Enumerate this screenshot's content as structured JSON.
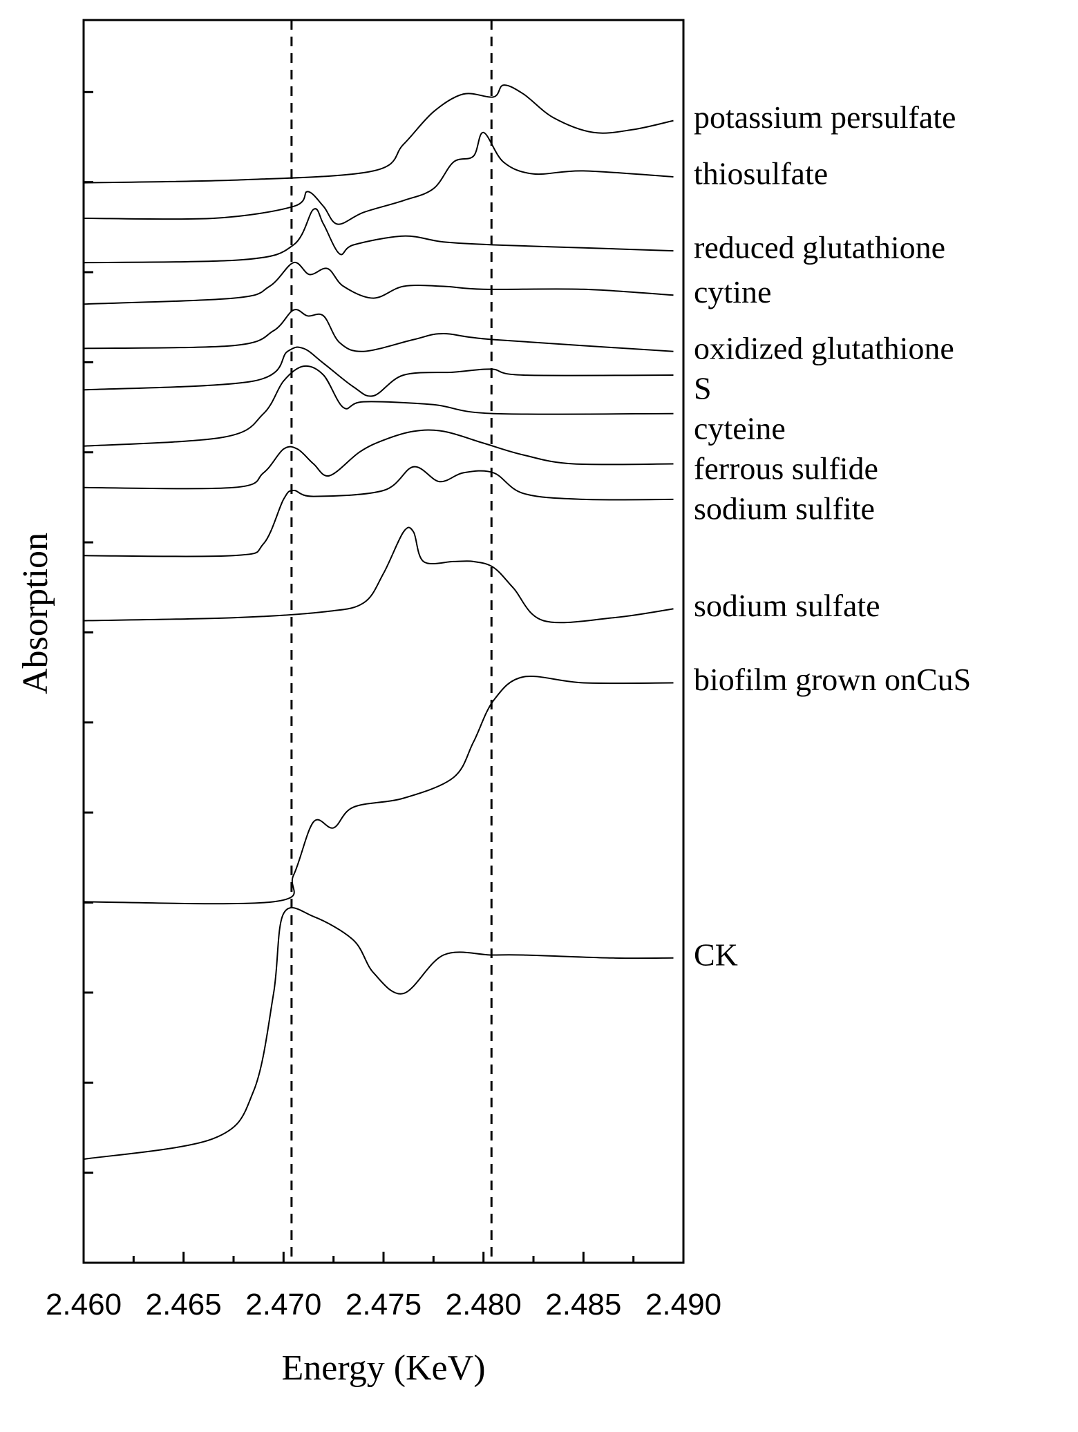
{
  "chart_data": {
    "type": "line",
    "title": "",
    "xlabel": "Energy (KeV)",
    "ylabel": "Absorption",
    "xlim": [
      2.46,
      2.49
    ],
    "x_ticks": [
      "2.460",
      "2.465",
      "2.470",
      "2.475",
      "2.480",
      "2.485",
      "2.490"
    ],
    "y_tick_labels": false,
    "stacked_with_offsets": true,
    "reference_lines_x": [
      2.4704,
      2.4804
    ],
    "reference_line_style": "dashed",
    "series_color": "#000000",
    "series": [
      {
        "name": "potassium persulfate",
        "x": [
          2.46,
          2.468,
          2.4745,
          2.476,
          2.4775,
          2.479,
          2.4805,
          2.481,
          2.482,
          2.4835,
          2.4855,
          2.4875,
          2.4895
        ],
        "y": [
          0.95,
          0.96,
          0.99,
          1.08,
          1.19,
          1.25,
          1.24,
          1.28,
          1.25,
          1.17,
          1.12,
          1.13,
          1.16
        ]
      },
      {
        "name": "thiosulfate",
        "x": [
          2.46,
          2.4665,
          2.4705,
          2.4712,
          2.472,
          2.4727,
          2.474,
          2.476,
          2.4775,
          2.4785,
          2.4795,
          2.48,
          2.481,
          2.4825,
          2.485,
          2.4895
        ],
        "y": [
          0.83,
          0.83,
          0.87,
          0.92,
          0.87,
          0.81,
          0.85,
          0.89,
          0.93,
          1.02,
          1.04,
          1.12,
          1.02,
          0.98,
          0.99,
          0.97
        ]
      },
      {
        "name": "reduced glutathione",
        "x": [
          2.46,
          2.468,
          2.4705,
          2.4715,
          2.472,
          2.4728,
          2.4735,
          2.476,
          2.478,
          2.4805,
          2.485,
          2.4895
        ],
        "y": [
          0.68,
          0.69,
          0.74,
          0.86,
          0.81,
          0.71,
          0.74,
          0.77,
          0.75,
          0.74,
          0.73,
          0.72
        ]
      },
      {
        "name": "cytine",
        "x": [
          2.46,
          2.4675,
          2.4693,
          2.4705,
          2.4713,
          2.4722,
          2.473,
          2.4745,
          2.476,
          2.478,
          2.48,
          2.485,
          2.4895
        ],
        "y": [
          0.54,
          0.56,
          0.6,
          0.68,
          0.64,
          0.66,
          0.6,
          0.56,
          0.6,
          0.6,
          0.59,
          0.59,
          0.57
        ]
      },
      {
        "name": "oxidized glutathione",
        "x": [
          2.46,
          2.4675,
          2.4695,
          2.4705,
          2.4712,
          2.472,
          2.4728,
          2.474,
          2.4765,
          2.478,
          2.4805,
          2.4895
        ],
        "y": [
          0.39,
          0.4,
          0.45,
          0.52,
          0.5,
          0.5,
          0.41,
          0.38,
          0.42,
          0.44,
          0.42,
          0.38
        ]
      },
      {
        "name": "S",
        "x": [
          2.46,
          2.4685,
          2.4702,
          2.471,
          2.472,
          2.4735,
          2.4745,
          2.476,
          2.4785,
          2.4804,
          2.482,
          2.4895
        ],
        "y": [
          0.25,
          0.28,
          0.38,
          0.39,
          0.34,
          0.26,
          0.23,
          0.3,
          0.31,
          0.32,
          0.3,
          0.3
        ]
      },
      {
        "name": "cyteine",
        "x": [
          2.46,
          2.467,
          2.469,
          2.47,
          2.471,
          2.472,
          2.473,
          2.474,
          2.4775,
          2.4805,
          2.4895
        ],
        "y": [
          0.06,
          0.09,
          0.17,
          0.28,
          0.33,
          0.3,
          0.19,
          0.21,
          0.2,
          0.17,
          0.17
        ]
      },
      {
        "name": "ferrous sulfide",
        "x": [
          2.46,
          2.4675,
          2.469,
          2.47,
          2.4707,
          2.4715,
          2.4723,
          2.4738,
          2.475,
          2.4765,
          2.478,
          2.48,
          2.482,
          2.4845,
          2.4895
        ],
        "y": [
          -0.08,
          -0.08,
          -0.03,
          0.05,
          0.05,
          0.0,
          -0.04,
          0.04,
          0.08,
          0.11,
          0.11,
          0.07,
          0.03,
          0.0,
          0.0
        ]
      },
      {
        "name": "sodium sulfite",
        "x": [
          2.46,
          2.4675,
          2.469,
          2.47,
          2.4705,
          2.4715,
          2.475,
          2.4765,
          2.4778,
          2.479,
          2.4805,
          2.482,
          2.485,
          2.4895
        ],
        "y": [
          -0.31,
          -0.31,
          -0.27,
          -0.12,
          -0.09,
          -0.11,
          -0.09,
          -0.01,
          -0.06,
          -0.03,
          -0.03,
          -0.1,
          -0.12,
          -0.12
        ]
      },
      {
        "name": "sodium sulfate",
        "x": [
          2.46,
          2.4675,
          2.472,
          2.474,
          2.475,
          2.476,
          2.4765,
          2.477,
          2.4785,
          2.4795,
          2.4805,
          2.4815,
          2.483,
          2.4865,
          2.4895
        ],
        "y": [
          -0.53,
          -0.52,
          -0.5,
          -0.47,
          -0.37,
          -0.23,
          -0.23,
          -0.33,
          -0.33,
          -0.33,
          -0.35,
          -0.42,
          -0.53,
          -0.52,
          -0.49
        ]
      },
      {
        "name": "biofilm grown onCuS",
        "x": [
          2.46,
          2.4695,
          2.4705,
          2.4715,
          2.4725,
          2.4735,
          2.476,
          2.4785,
          2.4795,
          2.4805,
          2.482,
          2.485,
          2.4895
        ],
        "y": [
          -1.48,
          -1.48,
          -1.39,
          -1.21,
          -1.23,
          -1.16,
          -1.13,
          -1.06,
          -0.94,
          -0.8,
          -0.72,
          -0.74,
          -0.74
        ]
      },
      {
        "name": "CK",
        "x": [
          2.46,
          2.4665,
          2.4685,
          2.4695,
          2.47,
          2.4715,
          2.4735,
          2.4745,
          2.476,
          2.478,
          2.4804,
          2.482,
          2.4865,
          2.4895
        ],
        "y": [
          -2.35,
          -2.28,
          -2.12,
          -1.79,
          -1.52,
          -1.53,
          -1.61,
          -1.72,
          -1.79,
          -1.66,
          -1.66,
          -1.66,
          -1.67,
          -1.67
        ]
      }
    ]
  }
}
